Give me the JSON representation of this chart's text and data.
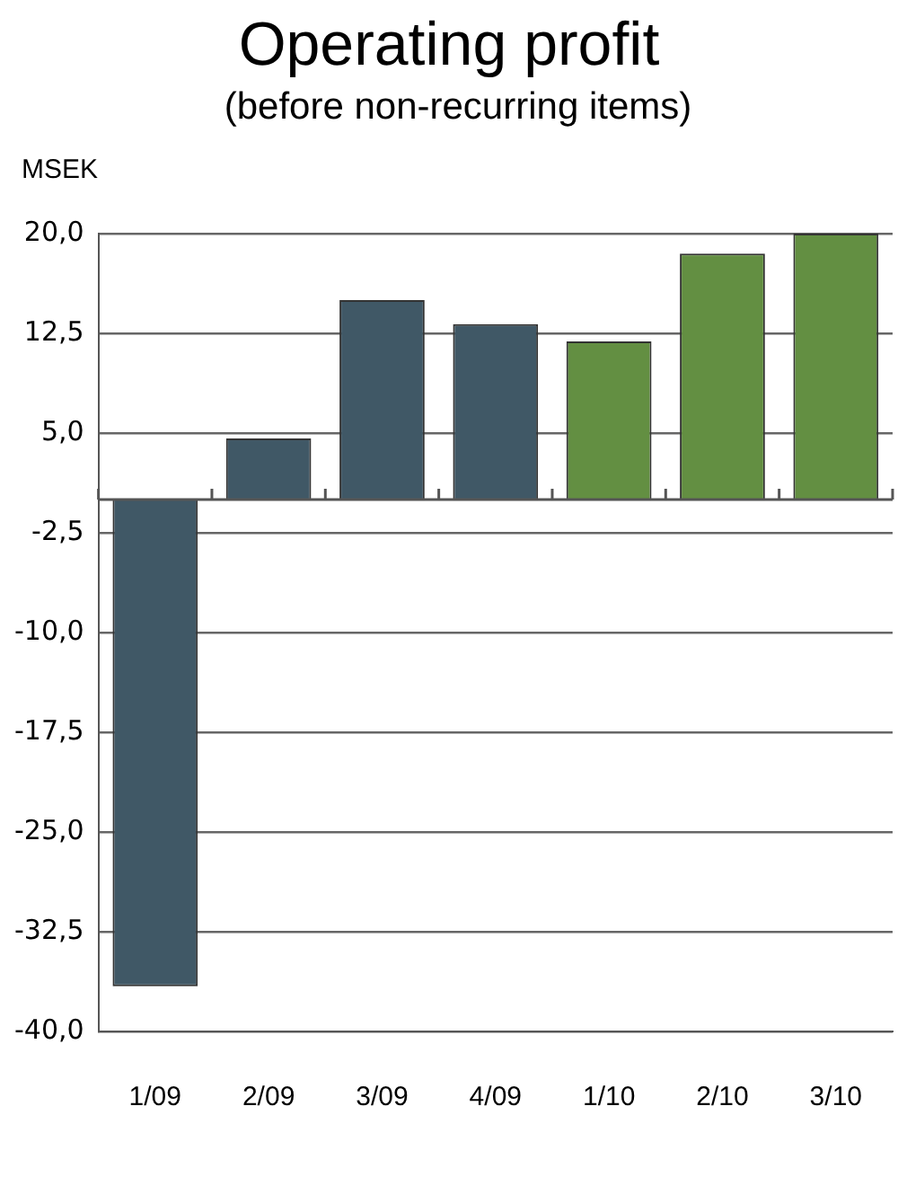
{
  "chart_data": {
    "type": "bar",
    "title": "Operating profit",
    "subtitle": "(before non-recurring items)",
    "ylabel": "MSEK",
    "categories": [
      "1/09",
      "2/09",
      "3/09",
      "4/09",
      "1/10",
      "2/10",
      "3/10"
    ],
    "values": [
      -36.6,
      4.6,
      15.0,
      13.2,
      11.9,
      18.5,
      20.0
    ],
    "colors": [
      "#405866",
      "#405866",
      "#405866",
      "#405866",
      "#638f42",
      "#638f42",
      "#638f42"
    ],
    "ylim": [
      -40,
      20
    ],
    "yticks": [
      {
        "value": 20,
        "label": "20,0"
      },
      {
        "value": 12.5,
        "label": "12,5"
      },
      {
        "value": 5,
        "label": "5,0"
      },
      {
        "value": -2.5,
        "label": "-2,5"
      },
      {
        "value": -10,
        "label": "-10,0"
      },
      {
        "value": -17.5,
        "label": "-17,5"
      },
      {
        "value": -25,
        "label": "-25,0"
      },
      {
        "value": -32.5,
        "label": "-32,5"
      },
      {
        "value": -40,
        "label": "-40,0"
      }
    ],
    "grid": "y",
    "legend": false
  }
}
